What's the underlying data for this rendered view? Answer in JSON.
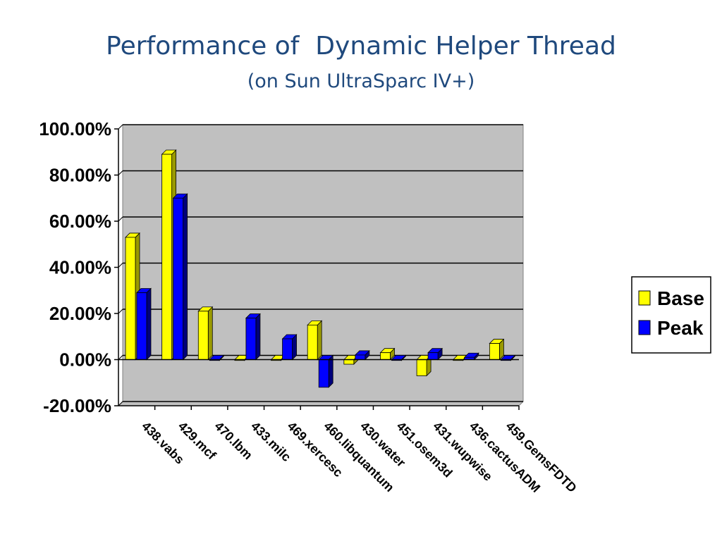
{
  "slide": {
    "title": "Performance of  Dynamic Helper Thread",
    "subtitle": "(on Sun UltraSparc IV+)"
  },
  "colors": {
    "plot_bg": "#c0c0c0",
    "base_face": "#ffff00",
    "base_side": "#9a9a00",
    "peak_face": "#0000ff",
    "peak_side": "#00007a",
    "gridline": "#000000"
  },
  "chart_data": {
    "type": "bar",
    "title": "",
    "xlabel": "",
    "ylabel": "",
    "ylim": [
      -0.2,
      1.0
    ],
    "yticks": [
      1.0,
      0.8,
      0.6,
      0.4,
      0.2,
      0.0,
      -0.2
    ],
    "ytick_labels": [
      "100.00%",
      "80.00%",
      "60.00%",
      "40.00%",
      "20.00%",
      "0.00%",
      "-20.00%"
    ],
    "grid": true,
    "legend_position": "right",
    "categories": [
      "438.vabs",
      "429.mcf",
      "470.lbm",
      "433.milc",
      "469.xercesc",
      "460.libquantum",
      "430.water",
      "451.osem3d",
      "431.wupwise",
      "436.cactusADM",
      "459.GemsFDTD"
    ],
    "series": [
      {
        "name": "Base",
        "values": [
          0.53,
          0.89,
          0.21,
          0.0,
          0.0,
          0.15,
          -0.02,
          0.03,
          -0.07,
          0.0,
          0.07
        ]
      },
      {
        "name": "Peak",
        "values": [
          0.29,
          0.7,
          0.0,
          0.18,
          0.09,
          -0.12,
          0.02,
          0.0,
          0.03,
          0.01,
          0.0
        ]
      }
    ]
  }
}
